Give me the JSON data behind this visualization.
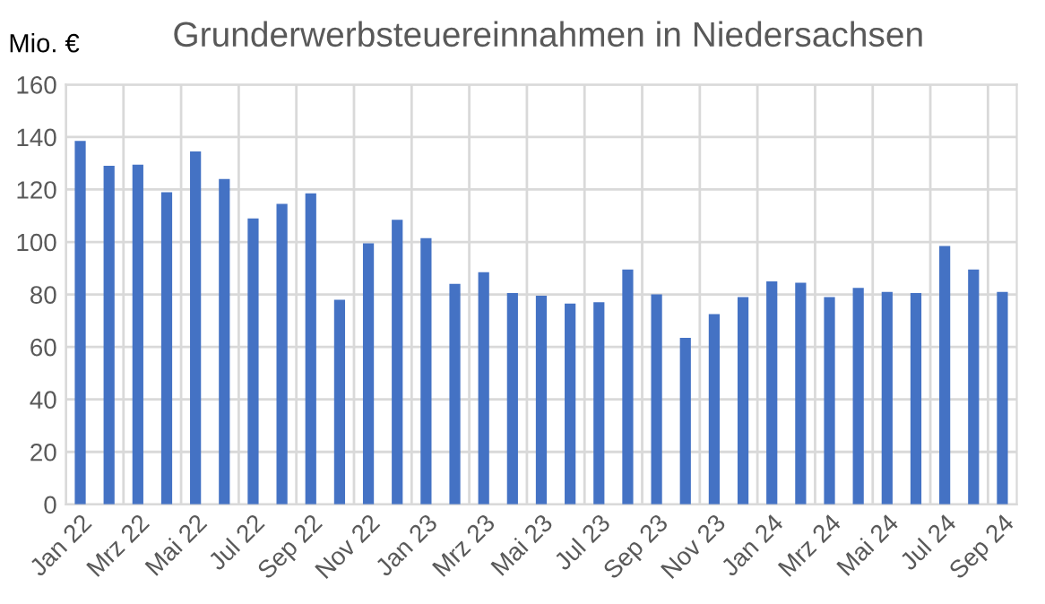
{
  "chart_data": {
    "type": "bar",
    "title": "Grunderwerbsteuereinnahmen in Niedersachsen",
    "ylabel": "Mio. €",
    "categories": [
      "Jan 22",
      null,
      "Mrz 22",
      null,
      "Mai 22",
      null,
      "Jul 22",
      null,
      "Sep 22",
      null,
      "Nov 22",
      null,
      "Jan 23",
      null,
      "Mrz 23",
      null,
      "Mai 23",
      null,
      "Jul 23",
      null,
      "Sep 23",
      null,
      "Nov 23",
      null,
      "Jan 24",
      null,
      "Mrz 24",
      null,
      "Mai 24",
      null,
      "Jul 24",
      null,
      "Sep 24"
    ],
    "values": [
      138.5,
      129,
      129.5,
      119,
      134.5,
      124,
      109,
      114.5,
      118.5,
      78,
      99.5,
      108.5,
      101.5,
      84,
      88.5,
      80.5,
      79.5,
      76.5,
      77,
      89.5,
      80,
      63.5,
      72.5,
      79,
      85,
      84.5,
      79,
      82.5,
      81,
      80.5,
      98.5,
      89.5,
      81
    ],
    "color": "#4472c4",
    "ylim": [
      0,
      160
    ],
    "yticks": [
      0,
      20,
      40,
      60,
      80,
      100,
      120,
      140,
      160
    ],
    "grid": true
  }
}
